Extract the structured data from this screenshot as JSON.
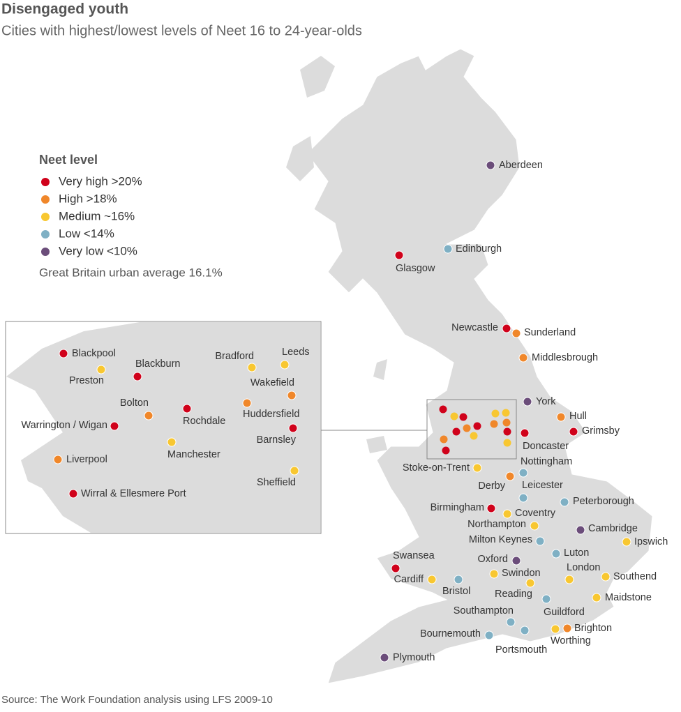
{
  "header": {
    "title": "Disengaged youth",
    "subtitle": "Cities with highest/lowest levels of Neet 16 to 24-year-olds"
  },
  "legend": {
    "title": "Neet level",
    "note": "Great Britain urban average 16.1%",
    "items": [
      {
        "label": "Very high >20%",
        "color": "#d0021b",
        "cities": [
          "Glasgow",
          "Newcastle",
          "Grimsby",
          "Doncaster",
          "Birmingham",
          "Swansea"
        ],
        "inset_cities": [
          "Blackpool",
          "Blackburn",
          "Rochdale",
          "Warrington / Wigan",
          "Barnsley",
          "Wirral & Ellesmere Port"
        ]
      },
      {
        "label": "High >18%",
        "color": "#f0872a",
        "cities": [
          "Sunderland",
          "Middlesbrough",
          "Hull",
          "Derby",
          "Brighton"
        ],
        "inset_cities": [
          "Bolton",
          "Huddersfield",
          "Wakefield",
          "Liverpool"
        ]
      },
      {
        "label": "Medium ~16%",
        "color": "#f8c731",
        "cities": [
          "Stoke-on-Trent",
          "Coventry",
          "Northampton",
          "Cardiff",
          "Swindon",
          "Reading",
          "London",
          "Southend",
          "Maidstone",
          "Worthing",
          "Ipswich"
        ],
        "inset_cities": [
          "Preston",
          "Bradford",
          "Leeds",
          "Manchester",
          "Sheffield"
        ]
      },
      {
        "label": "Low <14%",
        "color": "#7fb0c4",
        "cities": [
          "Edinburgh",
          "Nottingham",
          "Leicester",
          "Peterborough",
          "Milton Keynes",
          "Luton",
          "Bristol",
          "Southampton",
          "Guildford",
          "Bournemouth",
          "Portsmouth"
        ],
        "inset_cities": []
      },
      {
        "label": "Very low <10%",
        "color": "#6b4d7a",
        "cities": [
          "Aberdeen",
          "York",
          "Cambridge",
          "Oxford",
          "Plymouth"
        ],
        "inset_cities": []
      }
    ]
  },
  "source": "Source: The Work Foundation analysis using LFS 2009-10"
}
